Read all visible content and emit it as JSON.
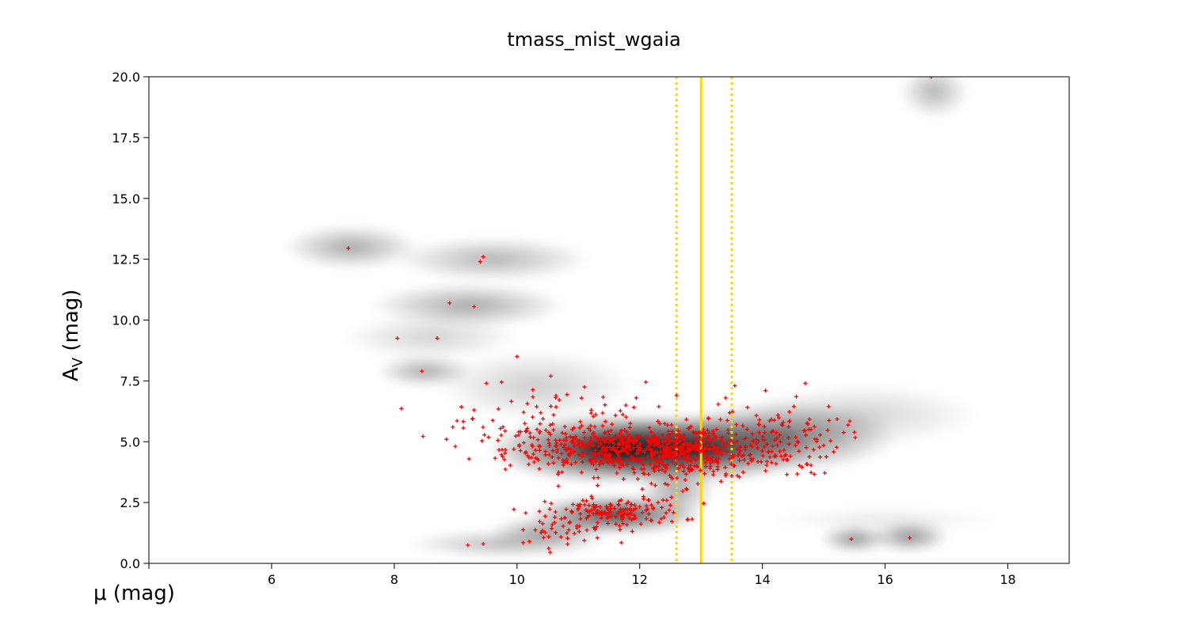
{
  "chart_data": {
    "type": "scatter",
    "title": "tmass_mist_wgaia",
    "xlabel": "μ (mag)",
    "ylabel_main": "A",
    "ylabel_sub": "V",
    "ylabel_unit": " (mag)",
    "xlim": [
      4,
      19
    ],
    "ylim": [
      0,
      20
    ],
    "xticks": [
      4,
      6,
      8,
      10,
      12,
      14,
      16,
      18
    ],
    "xtick_labels": [
      "",
      "6",
      "8",
      "10",
      "12",
      "14",
      "16",
      "18"
    ],
    "yticks": [
      0,
      2.5,
      5,
      7.5,
      10,
      12.5,
      15,
      17.5,
      20
    ],
    "ytick_labels": [
      "0.0",
      "2.5",
      "5.0",
      "7.5",
      "10.0",
      "12.5",
      "15.0",
      "17.5",
      "20.0"
    ],
    "grid": false,
    "colors": {
      "points": "#ff0000",
      "reference": "#ffd700",
      "density": "#000000"
    },
    "reference_lines": {
      "center": 13.0,
      "lower": 12.6,
      "upper": 13.5
    },
    "density_blobs": [
      {
        "x": 11.6,
        "y": 4.7,
        "sx": 1.3,
        "sy": 0.8,
        "w": 0.95
      },
      {
        "x": 12.9,
        "y": 4.7,
        "sx": 1.2,
        "sy": 0.8,
        "w": 0.75
      },
      {
        "x": 14.3,
        "y": 5.2,
        "sx": 1.2,
        "sy": 0.8,
        "w": 0.55
      },
      {
        "x": 11.6,
        "y": 2.0,
        "sx": 0.9,
        "sy": 0.45,
        "w": 0.75
      },
      {
        "x": 10.5,
        "y": 1.3,
        "sx": 0.6,
        "sy": 0.35,
        "w": 0.4
      },
      {
        "x": 9.8,
        "y": 0.8,
        "sx": 1.0,
        "sy": 0.3,
        "w": 0.3
      },
      {
        "x": 12.6,
        "y": 3.0,
        "sx": 0.4,
        "sy": 0.6,
        "w": 0.35
      },
      {
        "x": 15.5,
        "y": 1.0,
        "sx": 0.35,
        "sy": 0.3,
        "w": 0.45
      },
      {
        "x": 16.4,
        "y": 1.1,
        "sx": 0.4,
        "sy": 0.35,
        "w": 0.45
      },
      {
        "x": 7.3,
        "y": 13.0,
        "sx": 0.7,
        "sy": 0.5,
        "w": 0.35
      },
      {
        "x": 9.6,
        "y": 12.5,
        "sx": 1.0,
        "sy": 0.5,
        "w": 0.3
      },
      {
        "x": 9.2,
        "y": 10.6,
        "sx": 1.0,
        "sy": 0.5,
        "w": 0.35
      },
      {
        "x": 8.5,
        "y": 7.9,
        "sx": 0.5,
        "sy": 0.35,
        "w": 0.35
      },
      {
        "x": 8.6,
        "y": 9.3,
        "sx": 0.9,
        "sy": 0.5,
        "w": 0.18
      },
      {
        "x": 16.8,
        "y": 19.4,
        "sx": 0.35,
        "sy": 0.6,
        "w": 0.3
      },
      {
        "x": 10.3,
        "y": 7.3,
        "sx": 1.0,
        "sy": 0.8,
        "w": 0.2
      },
      {
        "x": 15.6,
        "y": 6.1,
        "sx": 1.2,
        "sy": 0.7,
        "w": 0.18
      },
      {
        "x": 16.0,
        "y": 1.8,
        "sx": 1.2,
        "sy": 0.25,
        "w": 0.1
      }
    ],
    "point_groups": [
      {
        "n": 420,
        "cx": 11.6,
        "cy": 4.7,
        "sx": 0.9,
        "sy": 0.45
      },
      {
        "n": 260,
        "cx": 12.9,
        "cy": 4.6,
        "sx": 0.7,
        "sy": 0.55
      },
      {
        "n": 120,
        "cx": 14.2,
        "cy": 5.1,
        "sx": 0.55,
        "sy": 0.75
      },
      {
        "n": 45,
        "cx": 10.0,
        "cy": 5.6,
        "sx": 0.45,
        "sy": 0.6
      },
      {
        "n": 150,
        "cx": 11.6,
        "cy": 2.1,
        "sx": 0.55,
        "sy": 0.3
      },
      {
        "n": 35,
        "cx": 10.7,
        "cy": 1.4,
        "sx": 0.35,
        "sy": 0.3
      },
      {
        "n": 18,
        "cx": 12.6,
        "cy": 3.3,
        "sx": 0.25,
        "sy": 0.5
      },
      {
        "n": 30,
        "cx": 11.5,
        "cy": 6.3,
        "sx": 0.9,
        "sy": 0.4
      }
    ],
    "outlier_points": [
      [
        7.25,
        12.95
      ],
      [
        9.4,
        12.4
      ],
      [
        9.45,
        12.6
      ],
      [
        8.9,
        10.7
      ],
      [
        9.3,
        10.55
      ],
      [
        8.05,
        9.25
      ],
      [
        8.7,
        9.25
      ],
      [
        10.0,
        8.5
      ],
      [
        8.45,
        7.9
      ],
      [
        10.55,
        7.7
      ],
      [
        8.85,
        5.1
      ],
      [
        9.3,
        6.3
      ],
      [
        9.5,
        7.4
      ],
      [
        9.75,
        7.45
      ],
      [
        12.1,
        7.45
      ],
      [
        14.05,
        7.1
      ],
      [
        14.7,
        7.4
      ],
      [
        11.1,
        7.25
      ],
      [
        12.6,
        6.9
      ],
      [
        13.4,
        6.8
      ],
      [
        13.55,
        7.3
      ],
      [
        9.2,
        0.75
      ],
      [
        9.45,
        0.8
      ],
      [
        10.1,
        0.85
      ],
      [
        10.2,
        0.9
      ],
      [
        15.45,
        1.0
      ],
      [
        16.4,
        1.05
      ],
      [
        16.75,
        20.0
      ],
      [
        11.7,
        0.85
      ]
    ]
  }
}
